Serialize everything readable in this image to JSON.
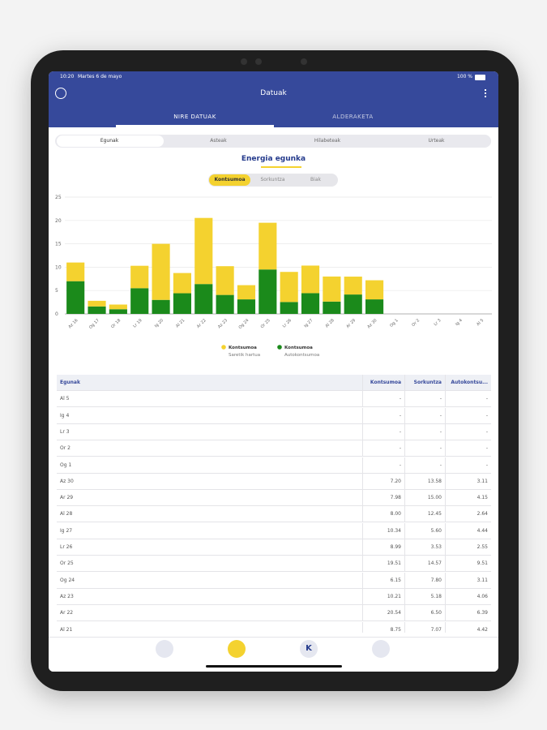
{
  "status_bar": {
    "time": "10:20",
    "date": "Martes 6 de mayo",
    "battery": "100 %"
  },
  "header": {
    "title": "Datuak",
    "tabs": [
      "NIRE DATUAK",
      "ALDERAKETA"
    ]
  },
  "periods": [
    "Egunak",
    "Asteak",
    "Hilabeteak",
    "Urteak"
  ],
  "chart_data": {
    "type": "bar",
    "stacked": true,
    "title": "Energia egunka",
    "modes": [
      "Kontsumoa",
      "Sorkuntza",
      "Biak"
    ],
    "categories": [
      "Az 16",
      "Og 17",
      "Or 18",
      "Lr 19",
      "Ig 20",
      "Al 21",
      "Ar 22",
      "Az 23",
      "Og 24",
      "Or 25",
      "Lr 26",
      "Ig 27",
      "Al 28",
      "Ar 29",
      "Az 30",
      "Og 1",
      "Or 2",
      "Lr 3",
      "Ig 4",
      "Al 5"
    ],
    "series": [
      {
        "name": "Kontsumoa",
        "label": "Saretik hartua",
        "color": "#f4d22f",
        "values": [
          4,
          1.2,
          1,
          4.8,
          12,
          4.33,
          14.15,
          6.15,
          3.04,
          10,
          6.44,
          5.9,
          5.36,
          3.83,
          4.09,
          null,
          null,
          null,
          null,
          null
        ]
      },
      {
        "name": "Kontsumoa",
        "label": "Autokontsumoa",
        "color": "#1b8a1b",
        "values": [
          7,
          1.6,
          1,
          5.5,
          3,
          4.42,
          6.39,
          4.06,
          3.11,
          9.51,
          2.55,
          4.44,
          2.64,
          4.15,
          3.11,
          null,
          null,
          null,
          null,
          null
        ]
      }
    ],
    "ylim": [
      0,
      25
    ],
    "yticks": [
      0,
      5,
      10,
      15,
      20,
      25
    ],
    "grid": true
  },
  "table": {
    "columns": [
      "Egunak",
      "Kontsumoa",
      "Sorkuntza",
      "Autokontsu..."
    ],
    "rows": [
      [
        "Al 5",
        "-",
        "-",
        "-"
      ],
      [
        "Ig 4",
        "-",
        "-",
        "-"
      ],
      [
        "Lr 3",
        "-",
        "-",
        "-"
      ],
      [
        "Or 2",
        "-",
        "-",
        "-"
      ],
      [
        "Og 1",
        "-",
        "-",
        "-"
      ],
      [
        "Az 30",
        "7.20",
        "13.58",
        "3.11"
      ],
      [
        "Ar 29",
        "7.98",
        "15.00",
        "4.15"
      ],
      [
        "Al 28",
        "8.00",
        "12.45",
        "2.64"
      ],
      [
        "Ig 27",
        "10.34",
        "5.60",
        "4.44"
      ],
      [
        "Lr 26",
        "8.99",
        "3.53",
        "2.55"
      ],
      [
        "Or 25",
        "19.51",
        "14.57",
        "9.51"
      ],
      [
        "Og 24",
        "6.15",
        "7.80",
        "3.11"
      ],
      [
        "Az 23",
        "10.21",
        "5.18",
        "4.06"
      ],
      [
        "Ar 22",
        "20.54",
        "6.50",
        "6.39"
      ],
      [
        "Al 21",
        "8.75",
        "7.07",
        "4.42"
      ]
    ]
  },
  "nav": {
    "k": "K"
  }
}
